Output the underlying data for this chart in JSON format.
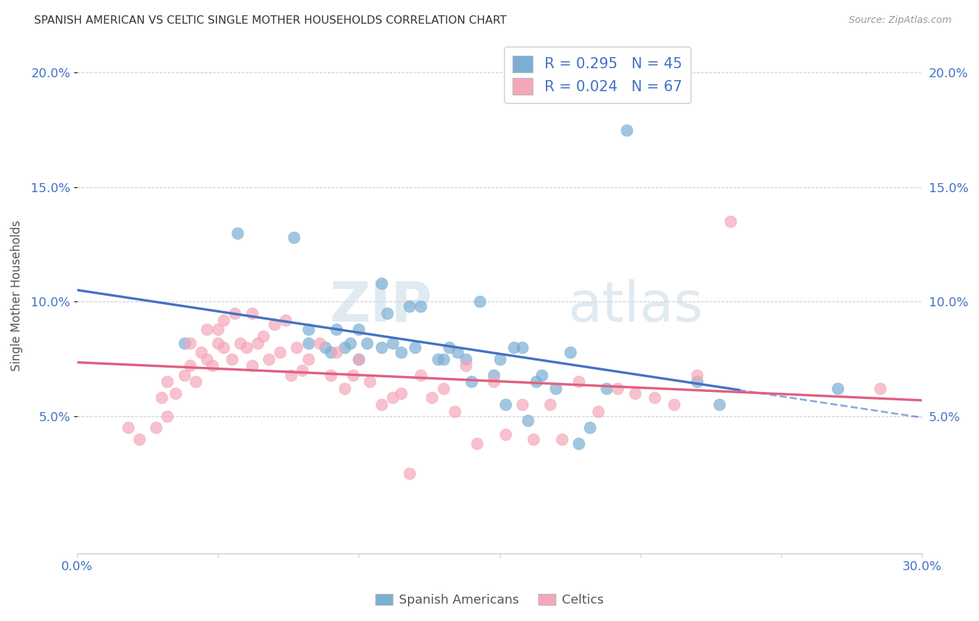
{
  "title": "SPANISH AMERICAN VS CELTIC SINGLE MOTHER HOUSEHOLDS CORRELATION CHART",
  "source": "Source: ZipAtlas.com",
  "ylabel": "Single Mother Households",
  "xlim": [
    0.0,
    0.3
  ],
  "ylim": [
    -0.01,
    0.215
  ],
  "yticks": [
    0.05,
    0.1,
    0.15,
    0.2
  ],
  "ytick_labels": [
    "5.0%",
    "10.0%",
    "15.0%",
    "20.0%"
  ],
  "xticks": [
    0.0,
    0.05,
    0.1,
    0.15,
    0.2,
    0.25,
    0.3
  ],
  "blue_color": "#7bafd4",
  "pink_color": "#f4a7b9",
  "blue_line_color": "#4472c4",
  "pink_line_color": "#e06080",
  "legend_blue_R": "R = 0.295",
  "legend_blue_N": "N = 45",
  "legend_pink_R": "R = 0.024",
  "legend_pink_N": "N = 67",
  "watermark_zip": "ZIP",
  "watermark_atlas": "atlas",
  "background_color": "#ffffff",
  "grid_color": "#cccccc",
  "tick_color": "#4472c4",
  "title_color": "#333333",
  "source_color": "#999999",
  "blue_scatter_x": [
    0.038,
    0.057,
    0.077,
    0.082,
    0.082,
    0.088,
    0.09,
    0.092,
    0.095,
    0.097,
    0.1,
    0.1,
    0.103,
    0.108,
    0.108,
    0.11,
    0.112,
    0.115,
    0.118,
    0.12,
    0.122,
    0.128,
    0.13,
    0.132,
    0.135,
    0.138,
    0.14,
    0.143,
    0.148,
    0.15,
    0.152,
    0.155,
    0.158,
    0.16,
    0.163,
    0.165,
    0.17,
    0.175,
    0.178,
    0.182,
    0.188,
    0.195,
    0.22,
    0.228,
    0.27
  ],
  "blue_scatter_y": [
    0.082,
    0.13,
    0.128,
    0.088,
    0.082,
    0.08,
    0.078,
    0.088,
    0.08,
    0.082,
    0.075,
    0.088,
    0.082,
    0.108,
    0.08,
    0.095,
    0.082,
    0.078,
    0.098,
    0.08,
    0.098,
    0.075,
    0.075,
    0.08,
    0.078,
    0.075,
    0.065,
    0.1,
    0.068,
    0.075,
    0.055,
    0.08,
    0.08,
    0.048,
    0.065,
    0.068,
    0.062,
    0.078,
    0.038,
    0.045,
    0.062,
    0.175,
    0.065,
    0.055,
    0.062
  ],
  "pink_scatter_x": [
    0.018,
    0.022,
    0.028,
    0.03,
    0.032,
    0.032,
    0.035,
    0.038,
    0.04,
    0.04,
    0.042,
    0.044,
    0.046,
    0.046,
    0.048,
    0.05,
    0.05,
    0.052,
    0.052,
    0.055,
    0.056,
    0.058,
    0.06,
    0.062,
    0.062,
    0.064,
    0.066,
    0.068,
    0.07,
    0.072,
    0.074,
    0.076,
    0.078,
    0.08,
    0.082,
    0.086,
    0.09,
    0.092,
    0.095,
    0.098,
    0.1,
    0.104,
    0.108,
    0.112,
    0.115,
    0.118,
    0.122,
    0.126,
    0.13,
    0.134,
    0.138,
    0.142,
    0.148,
    0.152,
    0.158,
    0.162,
    0.168,
    0.172,
    0.178,
    0.185,
    0.192,
    0.198,
    0.205,
    0.212,
    0.22,
    0.232,
    0.285
  ],
  "pink_scatter_y": [
    0.045,
    0.04,
    0.045,
    0.058,
    0.05,
    0.065,
    0.06,
    0.068,
    0.072,
    0.082,
    0.065,
    0.078,
    0.075,
    0.088,
    0.072,
    0.082,
    0.088,
    0.08,
    0.092,
    0.075,
    0.095,
    0.082,
    0.08,
    0.072,
    0.095,
    0.082,
    0.085,
    0.075,
    0.09,
    0.078,
    0.092,
    0.068,
    0.08,
    0.07,
    0.075,
    0.082,
    0.068,
    0.078,
    0.062,
    0.068,
    0.075,
    0.065,
    0.055,
    0.058,
    0.06,
    0.025,
    0.068,
    0.058,
    0.062,
    0.052,
    0.072,
    0.038,
    0.065,
    0.042,
    0.055,
    0.04,
    0.055,
    0.04,
    0.065,
    0.052,
    0.062,
    0.06,
    0.058,
    0.055,
    0.068,
    0.135,
    0.062
  ]
}
